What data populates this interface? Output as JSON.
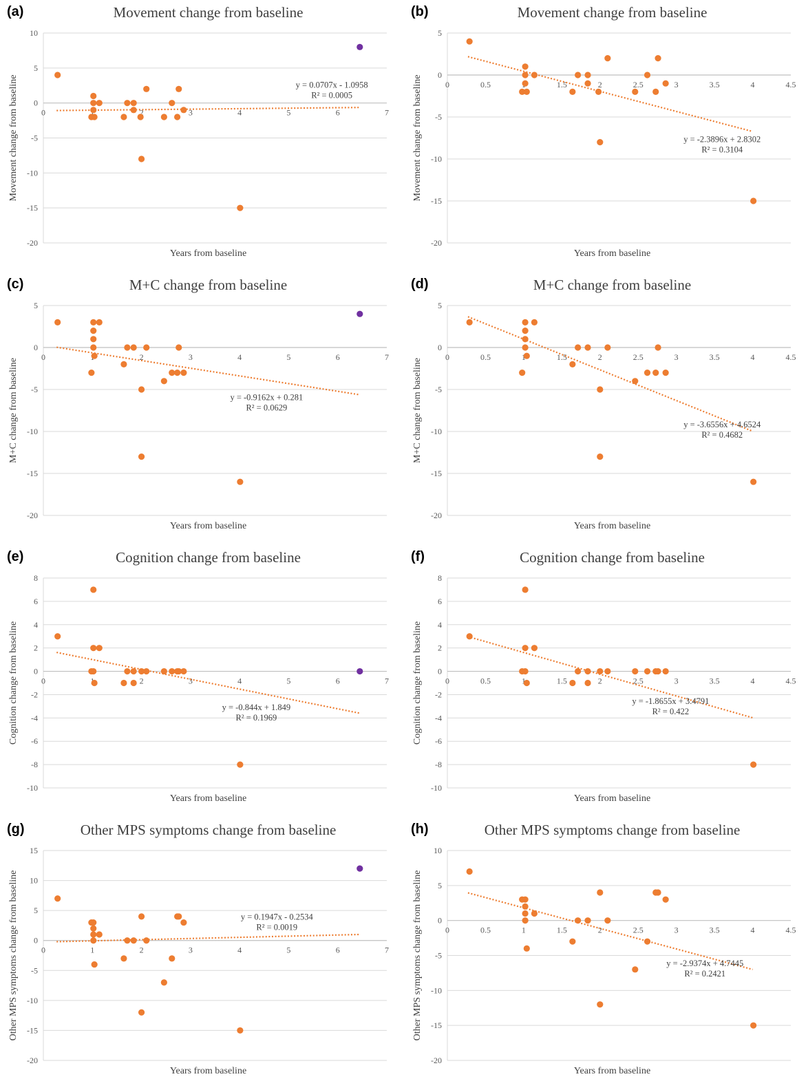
{
  "chart_data": [
    {
      "type": "scatter",
      "label": "(a)",
      "title": "Movement change from baseline",
      "xlabel": "Years from baseline",
      "ylabel": "Movement change from baseline",
      "xlim": [
        0,
        7
      ],
      "xticks": [
        0,
        1,
        2,
        3,
        4,
        5,
        6,
        7
      ],
      "ylim": [
        -20,
        10
      ],
      "yticks": [
        -20,
        -15,
        -10,
        -5,
        0,
        5,
        10
      ],
      "grid": true,
      "legend": "none",
      "series": [
        {
          "color": "#ED7D31",
          "points": [
            [
              0.29,
              4
            ],
            [
              0.98,
              -2
            ],
            [
              1.02,
              1
            ],
            [
              1.02,
              0
            ],
            [
              1.02,
              -1
            ],
            [
              1.04,
              -2
            ],
            [
              1.14,
              0
            ],
            [
              1.64,
              -2
            ],
            [
              1.71,
              0
            ],
            [
              1.84,
              0
            ],
            [
              1.84,
              -1
            ],
            [
              1.98,
              -2
            ],
            [
              2.0,
              -8
            ],
            [
              2.1,
              2
            ],
            [
              2.46,
              -2
            ],
            [
              2.62,
              0
            ],
            [
              2.73,
              -2
            ],
            [
              2.76,
              2
            ],
            [
              2.86,
              -1
            ],
            [
              4.01,
              -15
            ]
          ]
        },
        {
          "color": "#7030A0",
          "points": [
            [
              6.45,
              8
            ]
          ]
        }
      ],
      "trendline": {
        "color": "#ED7D31",
        "slope": 0.0707,
        "intercept": -1.0958,
        "x_range": [
          0.27,
          6.45
        ],
        "equation": "y = 0.0707x - 1.0958",
        "r2": "R² = 0.0005"
      }
    },
    {
      "type": "scatter",
      "label": "(b)",
      "title": "Movement change from baseline",
      "xlabel": "Years from baseline",
      "ylabel": "Movement change from baseline",
      "xlim": [
        0,
        4.5
      ],
      "xticks": [
        0,
        0.5,
        1,
        1.5,
        2,
        2.5,
        3,
        3.5,
        4,
        4.5
      ],
      "ylim": [
        -20,
        5
      ],
      "yticks": [
        -20,
        -15,
        -10,
        -5,
        0,
        5
      ],
      "grid": true,
      "legend": "none",
      "series": [
        {
          "color": "#ED7D31",
          "points": [
            [
              0.29,
              4
            ],
            [
              0.98,
              -2
            ],
            [
              1.02,
              1
            ],
            [
              1.02,
              0
            ],
            [
              1.02,
              -1
            ],
            [
              1.04,
              -2
            ],
            [
              1.14,
              0
            ],
            [
              1.64,
              -2
            ],
            [
              1.71,
              0
            ],
            [
              1.84,
              0
            ],
            [
              1.84,
              -1
            ],
            [
              1.98,
              -2
            ],
            [
              2.0,
              -8
            ],
            [
              2.1,
              2
            ],
            [
              2.46,
              -2
            ],
            [
              2.62,
              0
            ],
            [
              2.73,
              -2
            ],
            [
              2.76,
              2
            ],
            [
              2.86,
              -1
            ],
            [
              4.01,
              -15
            ]
          ]
        }
      ],
      "trendline": {
        "color": "#ED7D31",
        "slope": -2.3896,
        "intercept": 2.8302,
        "x_range": [
          0.27,
          4.0
        ],
        "equation": "y = -2.3896x + 2.8302",
        "r2": "R² = 0.3104"
      }
    },
    {
      "type": "scatter",
      "label": "(c)",
      "title": "M+C change from baseline",
      "xlabel": "Years from baseline",
      "ylabel": "M+C change from baseline",
      "xlim": [
        0,
        7
      ],
      "xticks": [
        0,
        1,
        2,
        3,
        4,
        5,
        6,
        7
      ],
      "ylim": [
        -20,
        5
      ],
      "yticks": [
        -20,
        -15,
        -10,
        -5,
        0,
        5
      ],
      "grid": true,
      "legend": "none",
      "series": [
        {
          "color": "#ED7D31",
          "points": [
            [
              0.29,
              3
            ],
            [
              0.98,
              -3
            ],
            [
              1.02,
              3
            ],
            [
              1.02,
              2
            ],
            [
              1.02,
              1
            ],
            [
              1.02,
              0
            ],
            [
              1.04,
              -1
            ],
            [
              1.14,
              3
            ],
            [
              1.64,
              -2
            ],
            [
              1.71,
              0
            ],
            [
              1.84,
              0
            ],
            [
              2.0,
              -5
            ],
            [
              2.0,
              -13
            ],
            [
              2.1,
              0
            ],
            [
              2.46,
              -4
            ],
            [
              2.62,
              -3
            ],
            [
              2.73,
              -3
            ],
            [
              2.76,
              0
            ],
            [
              2.86,
              -3
            ],
            [
              4.01,
              -16
            ]
          ]
        },
        {
          "color": "#7030A0",
          "points": [
            [
              6.45,
              4
            ]
          ]
        }
      ],
      "trendline": {
        "color": "#ED7D31",
        "slope": -0.9162,
        "intercept": 0.281,
        "x_range": [
          0.27,
          6.45
        ],
        "equation": "y = -0.9162x + 0.281",
        "r2": "R² = 0.0629"
      }
    },
    {
      "type": "scatter",
      "label": "(d)",
      "title": "M+C change from baseline",
      "xlabel": "Years from baseline",
      "ylabel": "M+C change from baseline",
      "xlim": [
        0,
        4.5
      ],
      "xticks": [
        0,
        0.5,
        1,
        1.5,
        2,
        2.5,
        3,
        3.5,
        4,
        4.5
      ],
      "ylim": [
        -20,
        5
      ],
      "yticks": [
        -20,
        -15,
        -10,
        -5,
        0,
        5
      ],
      "grid": true,
      "legend": "none",
      "series": [
        {
          "color": "#ED7D31",
          "points": [
            [
              0.29,
              3
            ],
            [
              0.98,
              -3
            ],
            [
              1.02,
              3
            ],
            [
              1.02,
              2
            ],
            [
              1.02,
              1
            ],
            [
              1.02,
              0
            ],
            [
              1.04,
              -1
            ],
            [
              1.14,
              3
            ],
            [
              1.64,
              -2
            ],
            [
              1.71,
              0
            ],
            [
              1.84,
              0
            ],
            [
              2.0,
              -5
            ],
            [
              2.0,
              -13
            ],
            [
              2.1,
              0
            ],
            [
              2.46,
              -4
            ],
            [
              2.62,
              -3
            ],
            [
              2.73,
              -3
            ],
            [
              2.76,
              0
            ],
            [
              2.86,
              -3
            ],
            [
              4.01,
              -16
            ]
          ]
        }
      ],
      "trendline": {
        "color": "#ED7D31",
        "slope": -3.6556,
        "intercept": 4.6524,
        "x_range": [
          0.27,
          4.0
        ],
        "equation": "y = -3.6556x + 4.6524",
        "r2": "R² = 0.4682"
      }
    },
    {
      "type": "scatter",
      "label": "(e)",
      "title": "Cognition change from baseline",
      "xlabel": "Years from baseline",
      "ylabel": "Cognition change from baseline",
      "xlim": [
        0,
        7
      ],
      "xticks": [
        0,
        1,
        2,
        3,
        4,
        5,
        6,
        7
      ],
      "ylim": [
        -10,
        8
      ],
      "yticks": [
        -10,
        -8,
        -6,
        -4,
        -2,
        0,
        2,
        4,
        6,
        8
      ],
      "grid": true,
      "legend": "none",
      "series": [
        {
          "color": "#ED7D31",
          "points": [
            [
              0.29,
              3
            ],
            [
              0.98,
              0
            ],
            [
              1.02,
              7
            ],
            [
              1.02,
              2
            ],
            [
              1.02,
              0
            ],
            [
              1.04,
              -1
            ],
            [
              1.14,
              2
            ],
            [
              1.64,
              -1
            ],
            [
              1.71,
              0
            ],
            [
              1.84,
              0
            ],
            [
              1.84,
              -1
            ],
            [
              2.0,
              0
            ],
            [
              2.1,
              0
            ],
            [
              2.46,
              0
            ],
            [
              2.62,
              0
            ],
            [
              2.73,
              0
            ],
            [
              2.76,
              0
            ],
            [
              2.86,
              0
            ],
            [
              4.01,
              -8
            ]
          ]
        },
        {
          "color": "#7030A0",
          "points": [
            [
              6.45,
              0
            ]
          ]
        }
      ],
      "trendline": {
        "color": "#ED7D31",
        "slope": -0.844,
        "intercept": 1.849,
        "x_range": [
          0.27,
          6.45
        ],
        "equation": "y = -0.844x + 1.849",
        "r2": "R² = 0.1969"
      }
    },
    {
      "type": "scatter",
      "label": "(f)",
      "title": "Cognition change from baseline",
      "xlabel": "Years from baseline",
      "ylabel": "Cognition change from baseline",
      "xlim": [
        0,
        4.5
      ],
      "xticks": [
        0,
        0.5,
        1,
        1.5,
        2,
        2.5,
        3,
        3.5,
        4,
        4.5
      ],
      "ylim": [
        -10,
        8
      ],
      "yticks": [
        -10,
        -8,
        -6,
        -4,
        -2,
        0,
        2,
        4,
        6,
        8
      ],
      "grid": true,
      "legend": "none",
      "series": [
        {
          "color": "#ED7D31",
          "points": [
            [
              0.29,
              3
            ],
            [
              0.98,
              0
            ],
            [
              1.02,
              7
            ],
            [
              1.02,
              2
            ],
            [
              1.02,
              0
            ],
            [
              1.04,
              -1
            ],
            [
              1.14,
              2
            ],
            [
              1.64,
              -1
            ],
            [
              1.71,
              0
            ],
            [
              1.84,
              0
            ],
            [
              1.84,
              -1
            ],
            [
              2.0,
              0
            ],
            [
              2.1,
              0
            ],
            [
              2.46,
              0
            ],
            [
              2.62,
              0
            ],
            [
              2.73,
              0
            ],
            [
              2.76,
              0
            ],
            [
              2.86,
              0
            ],
            [
              4.01,
              -8
            ]
          ]
        }
      ],
      "trendline": {
        "color": "#ED7D31",
        "slope": -1.8655,
        "intercept": 3.4791,
        "x_range": [
          0.27,
          4.0
        ],
        "equation": "y = -1.8655x + 3.4791",
        "r2": "R² = 0.422"
      }
    },
    {
      "type": "scatter",
      "label": "(g)",
      "title": "Other MPS symptoms change from baseline",
      "xlabel": "Years from baseline",
      "ylabel": "Other MPS symptoms change from baseline",
      "xlim": [
        0,
        7
      ],
      "xticks": [
        0,
        1,
        2,
        3,
        4,
        5,
        6,
        7
      ],
      "ylim": [
        -20,
        15
      ],
      "yticks": [
        -20,
        -15,
        -10,
        -5,
        0,
        5,
        10,
        15
      ],
      "grid": true,
      "legend": "none",
      "series": [
        {
          "color": "#ED7D31",
          "points": [
            [
              0.29,
              7
            ],
            [
              0.98,
              3
            ],
            [
              1.02,
              3
            ],
            [
              1.02,
              2
            ],
            [
              1.02,
              1
            ],
            [
              1.02,
              0
            ],
            [
              1.04,
              -4
            ],
            [
              1.14,
              1
            ],
            [
              1.64,
              -3
            ],
            [
              1.71,
              0
            ],
            [
              1.84,
              0
            ],
            [
              2.0,
              4
            ],
            [
              2.0,
              -12
            ],
            [
              2.1,
              0
            ],
            [
              2.46,
              -7
            ],
            [
              2.62,
              -3
            ],
            [
              2.73,
              4
            ],
            [
              2.76,
              4
            ],
            [
              2.86,
              3
            ],
            [
              4.01,
              -15
            ]
          ]
        },
        {
          "color": "#7030A0",
          "points": [
            [
              6.45,
              12
            ]
          ]
        }
      ],
      "trendline": {
        "color": "#ED7D31",
        "slope": 0.1947,
        "intercept": -0.2534,
        "x_range": [
          0.27,
          6.45
        ],
        "equation": "y = 0.1947x - 0.2534",
        "r2": "R² = 0.0019"
      }
    },
    {
      "type": "scatter",
      "label": "(h)",
      "title": "Other MPS symptoms change from baseline",
      "xlabel": "Years from baseline",
      "ylabel": "Other MPS symptoms change from baseline",
      "xlim": [
        0,
        4.5
      ],
      "xticks": [
        0,
        0.5,
        1,
        1.5,
        2,
        2.5,
        3,
        3.5,
        4,
        4.5
      ],
      "ylim": [
        -20,
        10
      ],
      "yticks": [
        -20,
        -15,
        -10,
        -5,
        0,
        5,
        10
      ],
      "grid": true,
      "legend": "none",
      "series": [
        {
          "color": "#ED7D31",
          "points": [
            [
              0.29,
              7
            ],
            [
              0.98,
              3
            ],
            [
              1.02,
              3
            ],
            [
              1.02,
              2
            ],
            [
              1.02,
              1
            ],
            [
              1.02,
              0
            ],
            [
              1.04,
              -4
            ],
            [
              1.14,
              1
            ],
            [
              1.64,
              -3
            ],
            [
              1.71,
              0
            ],
            [
              1.84,
              0
            ],
            [
              2.0,
              4
            ],
            [
              2.0,
              -12
            ],
            [
              2.1,
              0
            ],
            [
              2.46,
              -7
            ],
            [
              2.62,
              -3
            ],
            [
              2.73,
              4
            ],
            [
              2.76,
              4
            ],
            [
              2.86,
              3
            ],
            [
              4.01,
              -15
            ]
          ]
        }
      ],
      "trendline": {
        "color": "#ED7D31",
        "slope": -2.9374,
        "intercept": 4.7445,
        "x_range": [
          0.27,
          4.0
        ],
        "equation": "y = -2.9374x + 4.7445",
        "r2": "R² = 0.2421"
      }
    }
  ]
}
